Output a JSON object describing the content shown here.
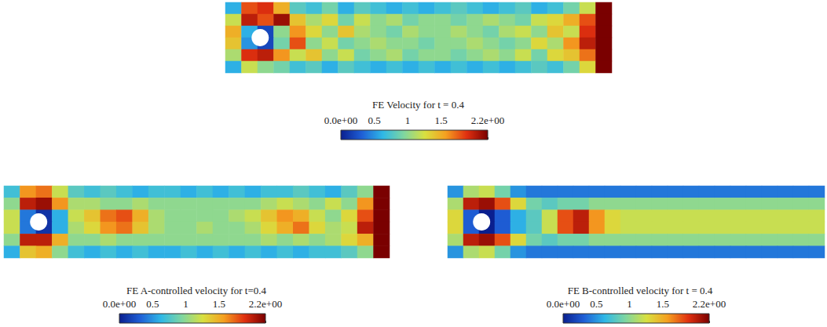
{
  "chart_data": [
    {
      "type": "heatmap",
      "tick_labels": false,
      "cells": [
        [
          0.6,
          1.8,
          1.9,
          1.5,
          0.8,
          0.7,
          0.9,
          0.6,
          0.8,
          0.7,
          0.6,
          0.7,
          0.6,
          0.7,
          0.8,
          0.7,
          0.6,
          0.7,
          0.8,
          0.6,
          0.7,
          0.9,
          1.2,
          2.2
        ],
        [
          1.2,
          2.0,
          1.8,
          2.1,
          1.4,
          1.1,
          1.3,
          0.9,
          1.2,
          1.0,
          1.1,
          0.9,
          1.0,
          1.0,
          0.9,
          1.0,
          1.1,
          1.0,
          0.9,
          1.2,
          1.3,
          1.5,
          1.8,
          2.2
        ],
        [
          1.5,
          0.6,
          0.2,
          1.0,
          1.6,
          1.3,
          1.0,
          1.4,
          1.1,
          1.0,
          0.9,
          1.1,
          1.0,
          1.0,
          1.1,
          1.0,
          0.9,
          1.1,
          1.2,
          1.0,
          1.4,
          1.2,
          1.9,
          2.2
        ],
        [
          1.4,
          0.5,
          0.2,
          0.9,
          1.8,
          1.0,
          1.2,
          0.9,
          1.0,
          1.1,
          1.0,
          1.0,
          0.9,
          1.0,
          1.0,
          1.1,
          1.0,
          0.9,
          1.0,
          1.3,
          1.1,
          1.6,
          2.0,
          2.2
        ],
        [
          1.1,
          1.9,
          2.0,
          1.6,
          1.2,
          1.4,
          1.0,
          1.2,
          0.9,
          1.0,
          1.1,
          0.9,
          1.0,
          1.0,
          0.9,
          1.0,
          1.1,
          1.0,
          1.2,
          0.9,
          1.3,
          1.4,
          1.7,
          2.2
        ],
        [
          0.6,
          1.2,
          1.0,
          0.9,
          0.7,
          0.8,
          0.6,
          0.8,
          0.7,
          0.6,
          0.7,
          0.6,
          0.7,
          0.6,
          0.7,
          0.6,
          0.7,
          0.6,
          0.7,
          0.8,
          0.7,
          0.9,
          1.3,
          2.2
        ]
      ],
      "colorbar": {
        "title": "FE Velocity for t = 0.4",
        "range": [
          0,
          2.2
        ],
        "ticks": [
          {
            "value": 0,
            "label": "0.0e+00"
          },
          0.5,
          1,
          1.5,
          {
            "value": 2.2,
            "label": "2.2e+00"
          }
        ]
      }
    },
    {
      "type": "heatmap",
      "tick_labels": false,
      "cells": [
        [
          0.7,
          1.6,
          1.7,
          1.2,
          0.8,
          0.7,
          0.8,
          0.7,
          0.6,
          0.7,
          0.7,
          0.6,
          0.7,
          0.6,
          0.7,
          0.6,
          0.7,
          0.7,
          0.8,
          0.7,
          0.6,
          0.8,
          1.0,
          2.2
        ],
        [
          1.0,
          2.0,
          2.1,
          1.6,
          1.1,
          1.1,
          1.0,
          1.0,
          1.1,
          1.0,
          1.0,
          1.0,
          1.0,
          1.0,
          1.0,
          1.0,
          1.1,
          1.2,
          1.1,
          1.0,
          1.2,
          1.0,
          1.6,
          2.2
        ],
        [
          1.2,
          0.4,
          0.1,
          0.6,
          1.2,
          1.4,
          1.7,
          1.8,
          1.5,
          1.1,
          1.0,
          1.0,
          1.0,
          1.0,
          1.1,
          1.2,
          1.4,
          1.6,
          1.5,
          1.2,
          1.0,
          1.3,
          1.8,
          2.2
        ],
        [
          1.2,
          0.4,
          0.1,
          0.6,
          1.1,
          1.3,
          1.6,
          1.7,
          1.4,
          1.1,
          1.0,
          1.0,
          1.1,
          1.0,
          1.0,
          1.1,
          1.3,
          1.5,
          1.7,
          1.3,
          1.1,
          1.2,
          2.0,
          2.2
        ],
        [
          1.0,
          2.0,
          2.0,
          1.5,
          1.0,
          1.0,
          1.1,
          1.0,
          1.0,
          1.0,
          1.0,
          1.0,
          1.0,
          1.0,
          1.0,
          1.0,
          1.1,
          1.0,
          1.1,
          1.0,
          1.1,
          1.3,
          1.5,
          2.2
        ],
        [
          0.6,
          1.4,
          1.5,
          1.0,
          0.7,
          0.6,
          0.7,
          0.6,
          0.7,
          0.6,
          0.6,
          0.7,
          0.6,
          0.7,
          0.6,
          0.7,
          0.6,
          0.7,
          0.6,
          0.7,
          0.7,
          0.8,
          1.0,
          2.2
        ]
      ],
      "colorbar": {
        "title": "FE A-controlled velocity for t=0.4",
        "range": [
          0,
          2.2
        ],
        "ticks": [
          {
            "value": 0,
            "label": "0.0e+00"
          },
          0.5,
          1,
          1.5,
          {
            "value": 2.2,
            "label": "2.2e+00"
          }
        ]
      }
    },
    {
      "type": "heatmap",
      "tick_labels": false,
      "cells": [
        [
          0.5,
          1.1,
          1.2,
          0.9,
          0.5,
          0.4,
          0.4,
          0.4,
          0.4,
          0.4,
          0.4,
          0.4,
          0.4,
          0.4,
          0.4,
          0.4,
          0.4,
          0.4,
          0.4,
          0.4,
          0.4,
          0.4,
          0.4,
          0.4
        ],
        [
          1.1,
          2.0,
          2.1,
          1.8,
          1.3,
          0.9,
          0.8,
          0.9,
          0.9,
          1.0,
          1.0,
          1.0,
          1.0,
          1.0,
          1.0,
          1.0,
          1.0,
          1.0,
          1.0,
          1.0,
          1.0,
          1.0,
          1.0,
          1.0
        ],
        [
          1.3,
          0.3,
          0.0,
          0.3,
          0.6,
          0.8,
          1.2,
          1.8,
          2.0,
          1.6,
          1.3,
          1.2,
          1.2,
          1.2,
          1.2,
          1.2,
          1.2,
          1.2,
          1.2,
          1.2,
          1.2,
          1.2,
          1.2,
          1.2
        ],
        [
          1.3,
          0.3,
          0.0,
          0.3,
          0.6,
          0.8,
          1.2,
          1.8,
          2.0,
          1.6,
          1.3,
          1.2,
          1.2,
          1.2,
          1.2,
          1.2,
          1.2,
          1.2,
          1.2,
          1.2,
          1.2,
          1.2,
          1.2,
          1.2
        ],
        [
          1.1,
          2.0,
          2.1,
          1.8,
          1.3,
          0.9,
          0.8,
          0.9,
          0.9,
          1.0,
          1.0,
          1.0,
          1.0,
          1.0,
          1.0,
          1.0,
          1.0,
          1.0,
          1.0,
          1.0,
          1.0,
          1.0,
          1.0,
          1.0
        ],
        [
          0.5,
          1.1,
          1.2,
          0.9,
          0.5,
          0.4,
          0.4,
          0.4,
          0.4,
          0.4,
          0.4,
          0.4,
          0.4,
          0.4,
          0.4,
          0.4,
          0.4,
          0.4,
          0.4,
          0.4,
          0.4,
          0.4,
          0.4,
          0.4
        ]
      ],
      "colorbar": {
        "title": "FE B-controlled velocity for t = 0.4",
        "range": [
          0,
          2.2
        ],
        "ticks": [
          {
            "value": 0,
            "label": "0.0e+00"
          },
          0.5,
          1,
          1.5,
          {
            "value": 2.2,
            "label": "2.2e+00"
          }
        ]
      }
    }
  ]
}
